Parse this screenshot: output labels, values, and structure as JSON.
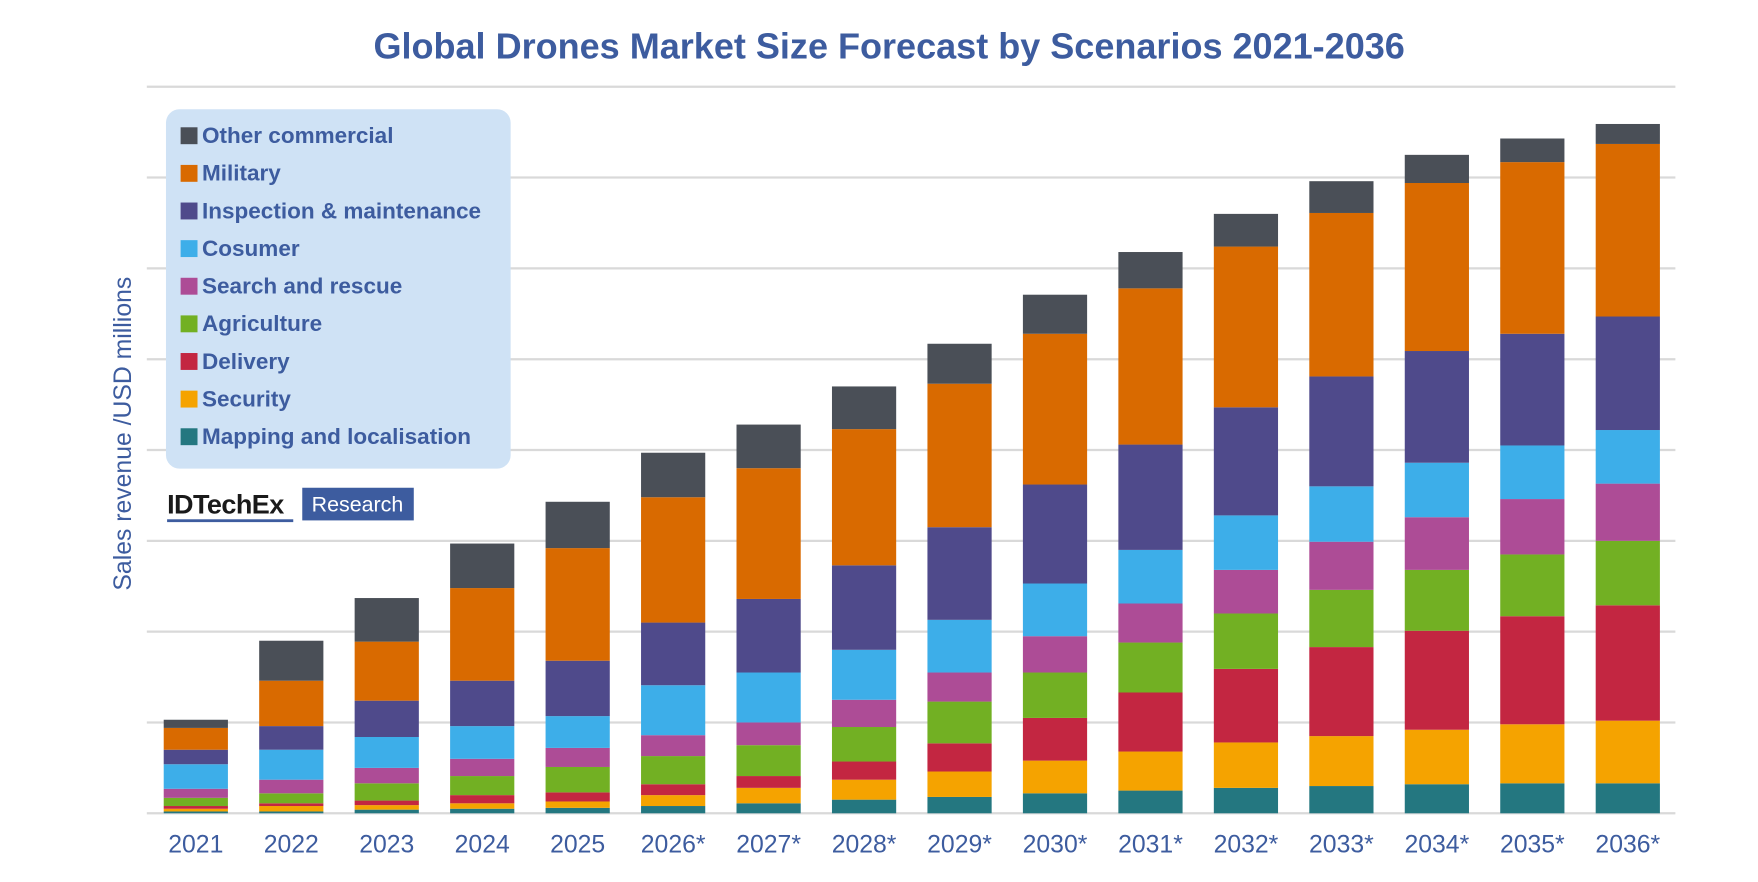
{
  "chart_data": {
    "type": "bar",
    "stacked": true,
    "title": "Global Drones Market Size Forecast by Scenarios 2021-2036",
    "xlabel": "",
    "ylabel": "Sales revenue /USD millions",
    "ylim": [
      0,
      8
    ],
    "y_tick_labels_shown": false,
    "grid": true,
    "legend_position": "top-left",
    "categories": [
      "2021",
      "2022",
      "2023",
      "2024",
      "2025",
      "2026*",
      "2027*",
      "2028*",
      "2029*",
      "2030*",
      "2031*",
      "2032*",
      "2033*",
      "2034*",
      "2035*",
      "2036*"
    ],
    "series": [
      {
        "name": "Mapping and localisation",
        "color": "#247780",
        "values": [
          0.02,
          0.02,
          0.04,
          0.05,
          0.06,
          0.08,
          0.11,
          0.15,
          0.18,
          0.22,
          0.25,
          0.28,
          0.3,
          0.32,
          0.33,
          0.33
        ]
      },
      {
        "name": "Security",
        "color": "#f5a300",
        "values": [
          0.03,
          0.06,
          0.05,
          0.06,
          0.07,
          0.12,
          0.17,
          0.22,
          0.28,
          0.36,
          0.43,
          0.5,
          0.55,
          0.6,
          0.65,
          0.69
        ]
      },
      {
        "name": "Delivery",
        "color": "#c32641",
        "values": [
          0.03,
          0.03,
          0.05,
          0.09,
          0.1,
          0.12,
          0.13,
          0.2,
          0.31,
          0.47,
          0.65,
          0.81,
          0.98,
          1.09,
          1.19,
          1.27
        ]
      },
      {
        "name": "Agriculture",
        "color": "#72b023",
        "values": [
          0.09,
          0.11,
          0.19,
          0.21,
          0.28,
          0.31,
          0.34,
          0.38,
          0.46,
          0.5,
          0.55,
          0.61,
          0.63,
          0.67,
          0.68,
          0.71
        ]
      },
      {
        "name": "Search and rescue",
        "color": "#ad4c96",
        "values": [
          0.1,
          0.15,
          0.17,
          0.19,
          0.21,
          0.23,
          0.25,
          0.3,
          0.32,
          0.4,
          0.43,
          0.48,
          0.53,
          0.58,
          0.61,
          0.63
        ]
      },
      {
        "name": "Cosumer",
        "color": "#3daee9",
        "values": [
          0.27,
          0.33,
          0.34,
          0.36,
          0.35,
          0.55,
          0.55,
          0.55,
          0.58,
          0.58,
          0.59,
          0.6,
          0.61,
          0.6,
          0.59,
          0.59
        ]
      },
      {
        "name": "Inspection & maintenance",
        "color": "#4f4a8b",
        "values": [
          0.16,
          0.26,
          0.4,
          0.5,
          0.61,
          0.69,
          0.81,
          0.93,
          1.02,
          1.09,
          1.16,
          1.19,
          1.21,
          1.23,
          1.23,
          1.25
        ]
      },
      {
        "name": "Military",
        "color": "#d96a00",
        "values": [
          0.24,
          0.5,
          0.65,
          1.02,
          1.24,
          1.38,
          1.44,
          1.5,
          1.58,
          1.66,
          1.72,
          1.77,
          1.8,
          1.85,
          1.89,
          1.9
        ]
      },
      {
        "name": "Other commercial",
        "color": "#4a4f57",
        "values": [
          0.09,
          0.44,
          0.48,
          0.49,
          0.51,
          0.49,
          0.48,
          0.47,
          0.44,
          0.43,
          0.4,
          0.36,
          0.35,
          0.31,
          0.26,
          0.22
        ]
      }
    ]
  },
  "legend_order": [
    8,
    7,
    6,
    5,
    4,
    3,
    2,
    1,
    0
  ],
  "logo": {
    "brand": "IDTechEx",
    "tag": "Research",
    "tag_bg": "#3d5c9f"
  },
  "colors": {
    "text": "#3d5c9f",
    "legend_bg": "#cfe2f5",
    "grid": "#d9d9d9"
  }
}
